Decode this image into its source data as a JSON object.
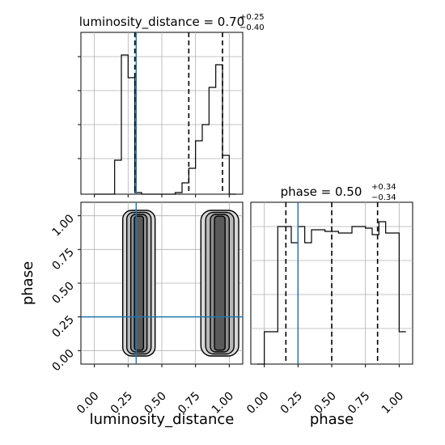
{
  "chart_data": [
    {
      "type": "histogram",
      "panel": "top-left",
      "title_text": "luminosity_distance = 0.70",
      "title_sup": "+0.25",
      "title_sub": "−0.40",
      "xlim": [
        -0.1,
        1.1
      ],
      "ylim": [
        0,
        1.0
      ],
      "grid": true,
      "bin_edges": [
        0.0,
        0.05,
        0.1,
        0.15,
        0.2,
        0.25,
        0.3,
        0.35,
        0.4,
        0.45,
        0.5,
        0.55,
        0.6,
        0.65,
        0.7,
        0.75,
        0.8,
        0.85,
        0.9,
        0.95,
        1.0,
        1.05
      ],
      "counts": [
        0,
        0,
        0,
        0.21,
        0.86,
        0.72,
        0.01,
        0,
        0,
        0,
        0,
        0,
        0.01,
        0.07,
        0.16,
        0.33,
        0.43,
        0.66,
        0.8,
        0.24,
        0,
        0
      ],
      "dashed_quantiles": [
        0.3,
        0.7,
        0.95
      ],
      "truth": 0.31
    },
    {
      "type": "histogram",
      "panel": "bottom-right",
      "title_text": "phase = 0.50",
      "title_sup": "+0.34",
      "title_sub": "−0.34",
      "xlim": [
        -0.1,
        1.1
      ],
      "ylim": [
        0,
        1.0
      ],
      "grid": true,
      "bin_edges": [
        -0.05,
        0.0,
        0.05,
        0.1,
        0.15,
        0.2,
        0.25,
        0.3,
        0.35,
        0.4,
        0.45,
        0.5,
        0.55,
        0.6,
        0.65,
        0.7,
        0.75,
        0.8,
        0.85,
        0.9,
        0.95,
        1.0,
        1.05
      ],
      "counts": [
        0,
        0.2,
        0.2,
        0.85,
        0.85,
        0.75,
        0.85,
        0.75,
        0.83,
        0.83,
        0.82,
        0.82,
        0.81,
        0.81,
        0.85,
        0.85,
        0.84,
        0.8,
        0.88,
        0.81,
        0.81,
        0.2,
        0.2
      ],
      "dashed_quantiles": [
        0.16,
        0.5,
        0.84
      ],
      "truth": 0.25
    },
    {
      "type": "2d-density",
      "panel": "bottom-left",
      "xlabel": "luminosity_distance",
      "ylabel": "phase",
      "xlim": [
        -0.1,
        1.1
      ],
      "ylim": [
        -0.1,
        1.1
      ],
      "xticks": [
        "0.00",
        "0.25",
        "0.50",
        "0.75",
        "1.00"
      ],
      "yticks": [
        "0.00",
        "0.25",
        "0.50",
        "0.75",
        "1.00"
      ],
      "grid": true,
      "truth": {
        "x": 0.31,
        "y": 0.25
      },
      "clusters": [
        {
          "x_center": 0.33,
          "x_width": 0.12,
          "y_range": [
            0.0,
            1.0
          ]
        },
        {
          "x_center": 0.93,
          "x_width": 0.14,
          "y_range": [
            0.0,
            1.0
          ]
        }
      ]
    }
  ],
  "colors": {
    "truth": "#1f77b4",
    "line": "#000000",
    "grid": "#b0b0b0",
    "points": "#808080"
  }
}
